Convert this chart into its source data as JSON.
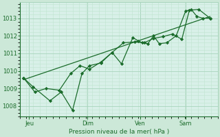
{
  "bg_color": "#cce8d8",
  "plot_bg_color": "#d8f0e8",
  "grid_color_major": "#a8d4bc",
  "grid_color_minor": "#c0e4d0",
  "line_color": "#1a6b2a",
  "axis_label": "Pression niveau de la mer( hPa )",
  "ylabel_ticks": [
    1008,
    1009,
    1010,
    1011,
    1012,
    1013
  ],
  "ylim": [
    1007.4,
    1013.9
  ],
  "xlim": [
    0.0,
    1.05
  ],
  "day_labels": [
    "Jeu",
    "Dim",
    "Ven",
    "Sam"
  ],
  "day_positions": [
    0.05,
    0.36,
    0.64,
    0.88
  ],
  "series1_x": [
    0.02,
    0.07,
    0.16,
    0.22,
    0.28,
    0.33,
    0.37,
    0.43,
    0.49,
    0.54,
    0.6,
    0.63,
    0.65,
    0.68,
    0.71,
    0.74,
    0.78,
    0.83,
    0.88,
    0.91,
    0.94,
    0.97,
    1.01
  ],
  "series1_y": [
    1009.6,
    1009.1,
    1008.3,
    1008.8,
    1007.75,
    1009.85,
    1010.3,
    1010.45,
    1011.05,
    1010.4,
    1011.9,
    1011.7,
    1011.6,
    1011.55,
    1012.0,
    1011.55,
    1011.6,
    1012.0,
    1013.4,
    1013.5,
    1013.1,
    1013.0,
    1013.0
  ],
  "series2_x": [
    0.02,
    0.08,
    0.14,
    0.21,
    0.27,
    0.32,
    0.37,
    0.43,
    0.49,
    0.55,
    0.61,
    0.66,
    0.71,
    0.76,
    0.81,
    0.86,
    0.9,
    0.95,
    1.01
  ],
  "series2_y": [
    1009.6,
    1008.8,
    1009.0,
    1008.9,
    1009.85,
    1010.3,
    1010.1,
    1010.5,
    1011.05,
    1011.6,
    1011.65,
    1011.6,
    1011.85,
    1011.95,
    1012.1,
    1011.8,
    1013.45,
    1013.5,
    1013.0
  ],
  "trend_x": [
    0.02,
    1.01
  ],
  "trend_y": [
    1009.5,
    1013.1
  ]
}
